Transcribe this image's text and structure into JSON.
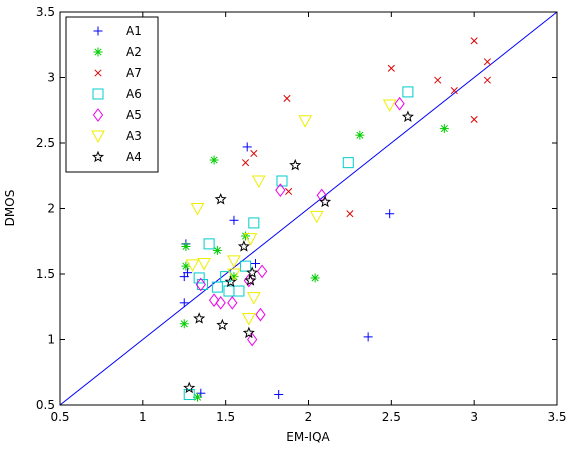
{
  "chart_data": {
    "type": "scatter",
    "xlabel": "EM-IQA",
    "ylabel": "DMOS",
    "xlim": [
      0.5,
      3.5
    ],
    "ylim": [
      0.5,
      3.5
    ],
    "xticks": [
      "0.5",
      "1",
      "1.5",
      "2",
      "2.5",
      "3",
      "3.5"
    ],
    "yticks": [
      "0.5",
      "1",
      "1.5",
      "2",
      "2.5",
      "3",
      "3.5"
    ],
    "grid": false,
    "legend_position": "top-left",
    "reference_line": {
      "from": [
        0.5,
        0.5
      ],
      "to": [
        3.5,
        3.5
      ],
      "color": "#0000ff"
    },
    "series": [
      {
        "name": "A1",
        "marker": "plus",
        "color": "#0000ff",
        "points": [
          [
            1.26,
            1.73
          ],
          [
            1.25,
            1.48
          ],
          [
            1.25,
            1.28
          ],
          [
            1.27,
            1.51
          ],
          [
            1.35,
            0.59
          ],
          [
            1.55,
            1.91
          ],
          [
            1.63,
            2.47
          ],
          [
            1.68,
            1.58
          ],
          [
            1.82,
            0.58
          ],
          [
            2.36,
            1.02
          ],
          [
            2.49,
            1.96
          ]
        ]
      },
      {
        "name": "A2",
        "marker": "asterisk",
        "color": "#00cc00",
        "points": [
          [
            1.26,
            1.71
          ],
          [
            1.26,
            1.56
          ],
          [
            1.25,
            1.12
          ],
          [
            1.33,
            0.56
          ],
          [
            1.43,
            2.37
          ],
          [
            1.45,
            1.68
          ],
          [
            1.55,
            1.48
          ],
          [
            1.62,
            1.79
          ],
          [
            2.04,
            1.47
          ],
          [
            2.31,
            2.56
          ],
          [
            2.82,
            2.61
          ]
        ]
      },
      {
        "name": "A7",
        "marker": "x",
        "color": "#dd0000",
        "points": [
          [
            1.62,
            2.35
          ],
          [
            1.67,
            2.42
          ],
          [
            1.87,
            2.84
          ],
          [
            1.88,
            2.13
          ],
          [
            2.25,
            1.96
          ],
          [
            2.5,
            3.07
          ],
          [
            2.78,
            2.98
          ],
          [
            2.88,
            2.9
          ],
          [
            3.0,
            3.28
          ],
          [
            3.0,
            2.68
          ],
          [
            3.08,
            2.98
          ],
          [
            3.08,
            3.12
          ]
        ]
      },
      {
        "name": "A6",
        "marker": "square",
        "color": "#00cccc",
        "points": [
          [
            1.28,
            0.58
          ],
          [
            1.34,
            1.47
          ],
          [
            1.36,
            1.42
          ],
          [
            1.4,
            1.73
          ],
          [
            1.45,
            1.4
          ],
          [
            1.5,
            1.48
          ],
          [
            1.52,
            1.37
          ],
          [
            1.58,
            1.37
          ],
          [
            1.62,
            1.56
          ],
          [
            1.67,
            1.89
          ],
          [
            1.84,
            2.21
          ],
          [
            2.24,
            2.35
          ],
          [
            2.6,
            2.89
          ]
        ]
      },
      {
        "name": "A5",
        "marker": "diamond",
        "color": "#ee00ee",
        "points": [
          [
            1.35,
            1.42
          ],
          [
            1.43,
            1.3
          ],
          [
            1.47,
            1.28
          ],
          [
            1.54,
            1.28
          ],
          [
            1.64,
            1.45
          ],
          [
            1.66,
            1.0
          ],
          [
            1.71,
            1.19
          ],
          [
            1.72,
            1.52
          ],
          [
            1.83,
            2.14
          ],
          [
            2.08,
            2.1
          ],
          [
            2.55,
            2.8
          ]
        ]
      },
      {
        "name": "A3",
        "marker": "triangle-down",
        "color": "#eeee00",
        "points": [
          [
            1.3,
            1.57
          ],
          [
            1.33,
            2.0
          ],
          [
            1.37,
            1.58
          ],
          [
            1.55,
            1.5
          ],
          [
            1.55,
            1.6
          ],
          [
            1.64,
            1.16
          ],
          [
            1.65,
            1.77
          ],
          [
            1.67,
            1.32
          ],
          [
            1.7,
            2.21
          ],
          [
            1.98,
            2.67
          ],
          [
            2.05,
            1.94
          ],
          [
            2.49,
            2.79
          ]
        ]
      },
      {
        "name": "A4",
        "marker": "star",
        "color": "#000000",
        "points": [
          [
            1.28,
            0.63
          ],
          [
            1.34,
            1.16
          ],
          [
            1.47,
            2.07
          ],
          [
            1.48,
            1.11
          ],
          [
            1.53,
            1.44
          ],
          [
            1.61,
            1.71
          ],
          [
            1.64,
            1.05
          ],
          [
            1.65,
            1.45
          ],
          [
            1.66,
            1.51
          ],
          [
            1.92,
            2.33
          ],
          [
            2.1,
            2.05
          ],
          [
            2.6,
            2.7
          ]
        ]
      }
    ]
  }
}
